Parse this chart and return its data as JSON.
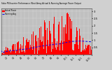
{
  "title": "Solar PV/Inverter Performance West Array Actual & Running Average Power Output",
  "background_color": "#d0d0d0",
  "plot_bg_color": "#c0c0c0",
  "bar_color": "#ff0000",
  "avg_color": "#0000ee",
  "grid_color": "#ffffff",
  "num_points": 365,
  "peak_day": 262,
  "peak_value": 3000,
  "ylim": [
    0,
    3200
  ],
  "ytick_values": [
    500,
    1000,
    1500,
    2000,
    2500,
    3000
  ],
  "ytick_labels": [
    "0.5",
    "1",
    "1.5",
    "2",
    "2.5",
    "3"
  ],
  "legend_labels": [
    "Actual Power",
    "Running Avg"
  ],
  "figsize": [
    1.6,
    1.0
  ],
  "dpi": 100
}
